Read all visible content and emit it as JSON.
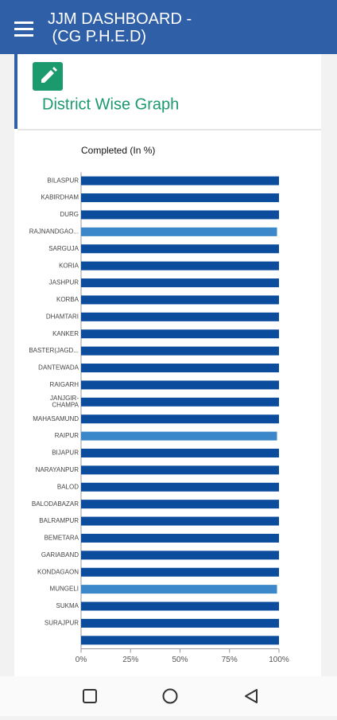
{
  "app_bar": {
    "title": "JJM DASHBOARD - (CG P.H.E.D)"
  },
  "card": {
    "title": "District Wise Graph"
  },
  "chart_data": {
    "type": "bar",
    "orientation": "horizontal",
    "title": "Completed (In %)",
    "categories": [
      "BILASPUR",
      "KABIRDHAM",
      "DURG",
      "RAJNANDGAO...",
      "SARGUJA",
      "KORIA",
      "JASHPUR",
      "KORBA",
      "DHAMTARI",
      "KANKER",
      "BASTER(JAGD...",
      "DANTEWADA",
      "RAIGARH",
      "JANJGIR-CHAMPA",
      "MAHASAMUND",
      "RAIPUR",
      "BIJAPUR",
      "NARAYANPUR",
      "BALOD",
      "BALODABAZAR",
      "BALRAMPUR",
      "BEMETARA",
      "GARIABAND",
      "KONDAGAON",
      "MUNGELI",
      "SUKMA",
      "SURAJPUR",
      null
    ],
    "values": [
      100,
      100,
      100,
      99,
      100,
      100,
      100,
      100,
      100,
      100,
      100,
      100,
      100,
      100,
      100,
      99,
      100,
      100,
      100,
      100,
      100,
      100,
      100,
      100,
      99,
      100,
      100,
      100
    ],
    "colors": [
      "#0b4c9c",
      "#0b4c9c",
      "#0b4c9c",
      "#3a87c9",
      "#0b4c9c",
      "#0b4c9c",
      "#0b4c9c",
      "#0b4c9c",
      "#0b4c9c",
      "#0b4c9c",
      "#0b4c9c",
      "#0b4c9c",
      "#0b4c9c",
      "#0b4c9c",
      "#0b4c9c",
      "#3a87c9",
      "#0b4c9c",
      "#0b4c9c",
      "#0b4c9c",
      "#0b4c9c",
      "#0b4c9c",
      "#0b4c9c",
      "#0b4c9c",
      "#0b4c9c",
      "#3a87c9",
      "#0b4c9c",
      "#0b4c9c",
      "#0b4c9c"
    ],
    "xlim": [
      0,
      100
    ],
    "xticks": [
      {
        "value": 0,
        "label": "0%"
      },
      {
        "value": 25,
        "label": "25%"
      },
      {
        "value": 50,
        "label": "50%"
      },
      {
        "value": 75,
        "label": "75%"
      },
      {
        "value": 100,
        "label": "100%"
      }
    ],
    "grid": false
  }
}
